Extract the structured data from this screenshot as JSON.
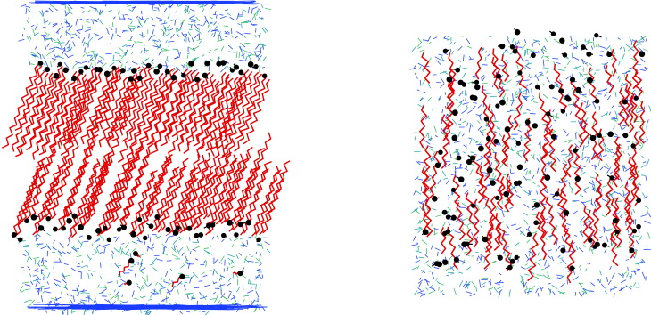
{
  "figure": {
    "panels": [
      {
        "name": "bilayer-with-water",
        "description_label": ""
      },
      {
        "name": "mixed-lipid-water-box",
        "description_label": ""
      }
    ],
    "colors": {
      "lipid_tails": "#e60000",
      "head_groups": "#000000",
      "water_blue": "#1a3cff",
      "water_green": "#2fbf5a",
      "water_cyan": "#1aa3a3",
      "background": "#ffffff"
    }
  }
}
